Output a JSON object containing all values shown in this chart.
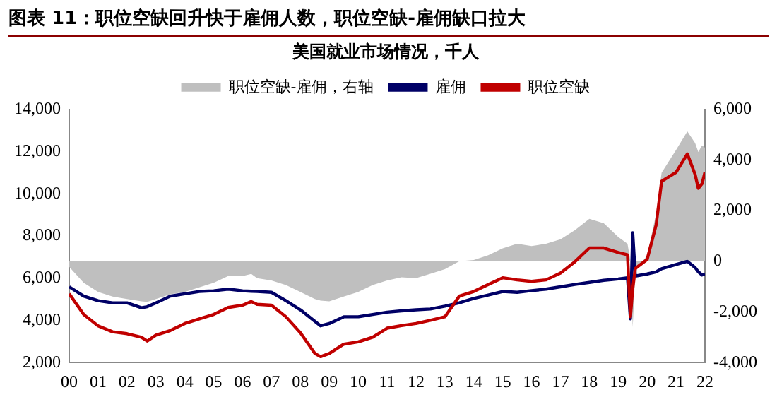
{
  "chart_data": {
    "type": "line",
    "title": "图表 11：职位空缺回升快于雇佣人数，职位空缺-雇佣缺口拉大",
    "subtitle": "美国就业市场情况，千人",
    "x": [
      0,
      0.5,
      1,
      1.5,
      2,
      2.5,
      2.7,
      3,
      3.5,
      4,
      4.5,
      5,
      5.5,
      6,
      6.3,
      6.5,
      7,
      7.5,
      8,
      8.5,
      8.7,
      9,
      9.5,
      10,
      10.5,
      11,
      11.5,
      12,
      12.5,
      13,
      13.5,
      14,
      14.5,
      15,
      15.5,
      16,
      16.5,
      17,
      17.5,
      18,
      18.5,
      19,
      19.32,
      19.42,
      19.5,
      19.59,
      20,
      20.31,
      20.5,
      21,
      21.39,
      21.66,
      21.77,
      21.9,
      22
    ],
    "series": [
      {
        "name": "职位空缺-雇佣，右轴",
        "type": "area",
        "axis": "y2",
        "color": "#bfbfbf",
        "values": [
          -220,
          -850,
          -1210,
          -1390,
          -1490,
          -1580,
          -1600,
          -1490,
          -1300,
          -1210,
          -1030,
          -850,
          -580,
          -580,
          -500,
          -670,
          -760,
          -940,
          -1210,
          -1490,
          -1550,
          -1580,
          -1390,
          -1210,
          -940,
          -760,
          -630,
          -670,
          -490,
          -310,
          0,
          50,
          240,
          510,
          690,
          600,
          690,
          870,
          1230,
          1680,
          1500,
          960,
          690,
          0,
          -2600,
          -400,
          240,
          1870,
          3500,
          4400,
          5130,
          4670,
          4310,
          4580,
          4490
        ]
      },
      {
        "name": "雇佣",
        "type": "line",
        "color": "#000066",
        "values": [
          5590,
          5150,
          4930,
          4830,
          4830,
          4600,
          4650,
          4830,
          5150,
          5260,
          5370,
          5400,
          5480,
          5400,
          5380,
          5370,
          5330,
          4930,
          4500,
          3960,
          3740,
          3850,
          4170,
          4170,
          4280,
          4390,
          4450,
          4500,
          4540,
          4670,
          4830,
          5040,
          5200,
          5370,
          5330,
          5410,
          5480,
          5590,
          5700,
          5800,
          5900,
          5960,
          6020,
          4070,
          8150,
          6100,
          6200,
          6300,
          6450,
          6650,
          6800,
          6500,
          6300,
          6150,
          6200
        ]
      },
      {
        "name": "职位空缺",
        "type": "line",
        "color": "#c00000",
        "values": [
          5260,
          4280,
          3740,
          3460,
          3370,
          3200,
          3020,
          3300,
          3520,
          3850,
          4070,
          4280,
          4610,
          4720,
          4890,
          4760,
          4720,
          4170,
          3410,
          2430,
          2280,
          2430,
          2870,
          2980,
          3200,
          3630,
          3750,
          3850,
          4000,
          4170,
          5150,
          5370,
          5700,
          6020,
          5920,
          5850,
          5920,
          6240,
          6780,
          7430,
          7430,
          7220,
          7110,
          4170,
          5500,
          6460,
          6890,
          8520,
          10590,
          11020,
          11890,
          10910,
          10260,
          10480,
          11020
        ]
      }
    ],
    "xlim": [
      0,
      22
    ],
    "xticks": [
      {
        "value": 0,
        "label": "00"
      },
      {
        "value": 1,
        "label": "01"
      },
      {
        "value": 2,
        "label": "02"
      },
      {
        "value": 3,
        "label": "03"
      },
      {
        "value": 4,
        "label": "04"
      },
      {
        "value": 5,
        "label": "05"
      },
      {
        "value": 6,
        "label": "06"
      },
      {
        "value": 7,
        "label": "07"
      },
      {
        "value": 8,
        "label": "08"
      },
      {
        "value": 9,
        "label": "09"
      },
      10,
      11,
      12,
      13,
      14,
      15,
      16,
      17,
      18,
      19,
      20,
      21,
      22
    ],
    "ylim": [
      2000,
      14000
    ],
    "yticks": [
      {
        "value": 2000,
        "label": "2,000"
      },
      {
        "value": 4000,
        "label": "4,000"
      },
      {
        "value": 6000,
        "label": "6,000"
      },
      {
        "value": 8000,
        "label": "8,000"
      },
      {
        "value": 10000,
        "label": "10,000"
      },
      {
        "value": 12000,
        "label": "12,000"
      },
      {
        "value": 14000,
        "label": "14,000"
      }
    ],
    "y2lim": [
      -4000,
      6000
    ],
    "y2ticks": [
      {
        "value": -4000,
        "label": "-4,000"
      },
      {
        "value": -2000,
        "label": "-2,000"
      },
      0,
      {
        "value": 2000,
        "label": "2,000"
      },
      {
        "value": 4000,
        "label": "4,000"
      },
      {
        "value": 6000,
        "label": "6,000"
      }
    ],
    "grid": false,
    "legend": "top",
    "marker": "none",
    "line_style": "solid"
  }
}
